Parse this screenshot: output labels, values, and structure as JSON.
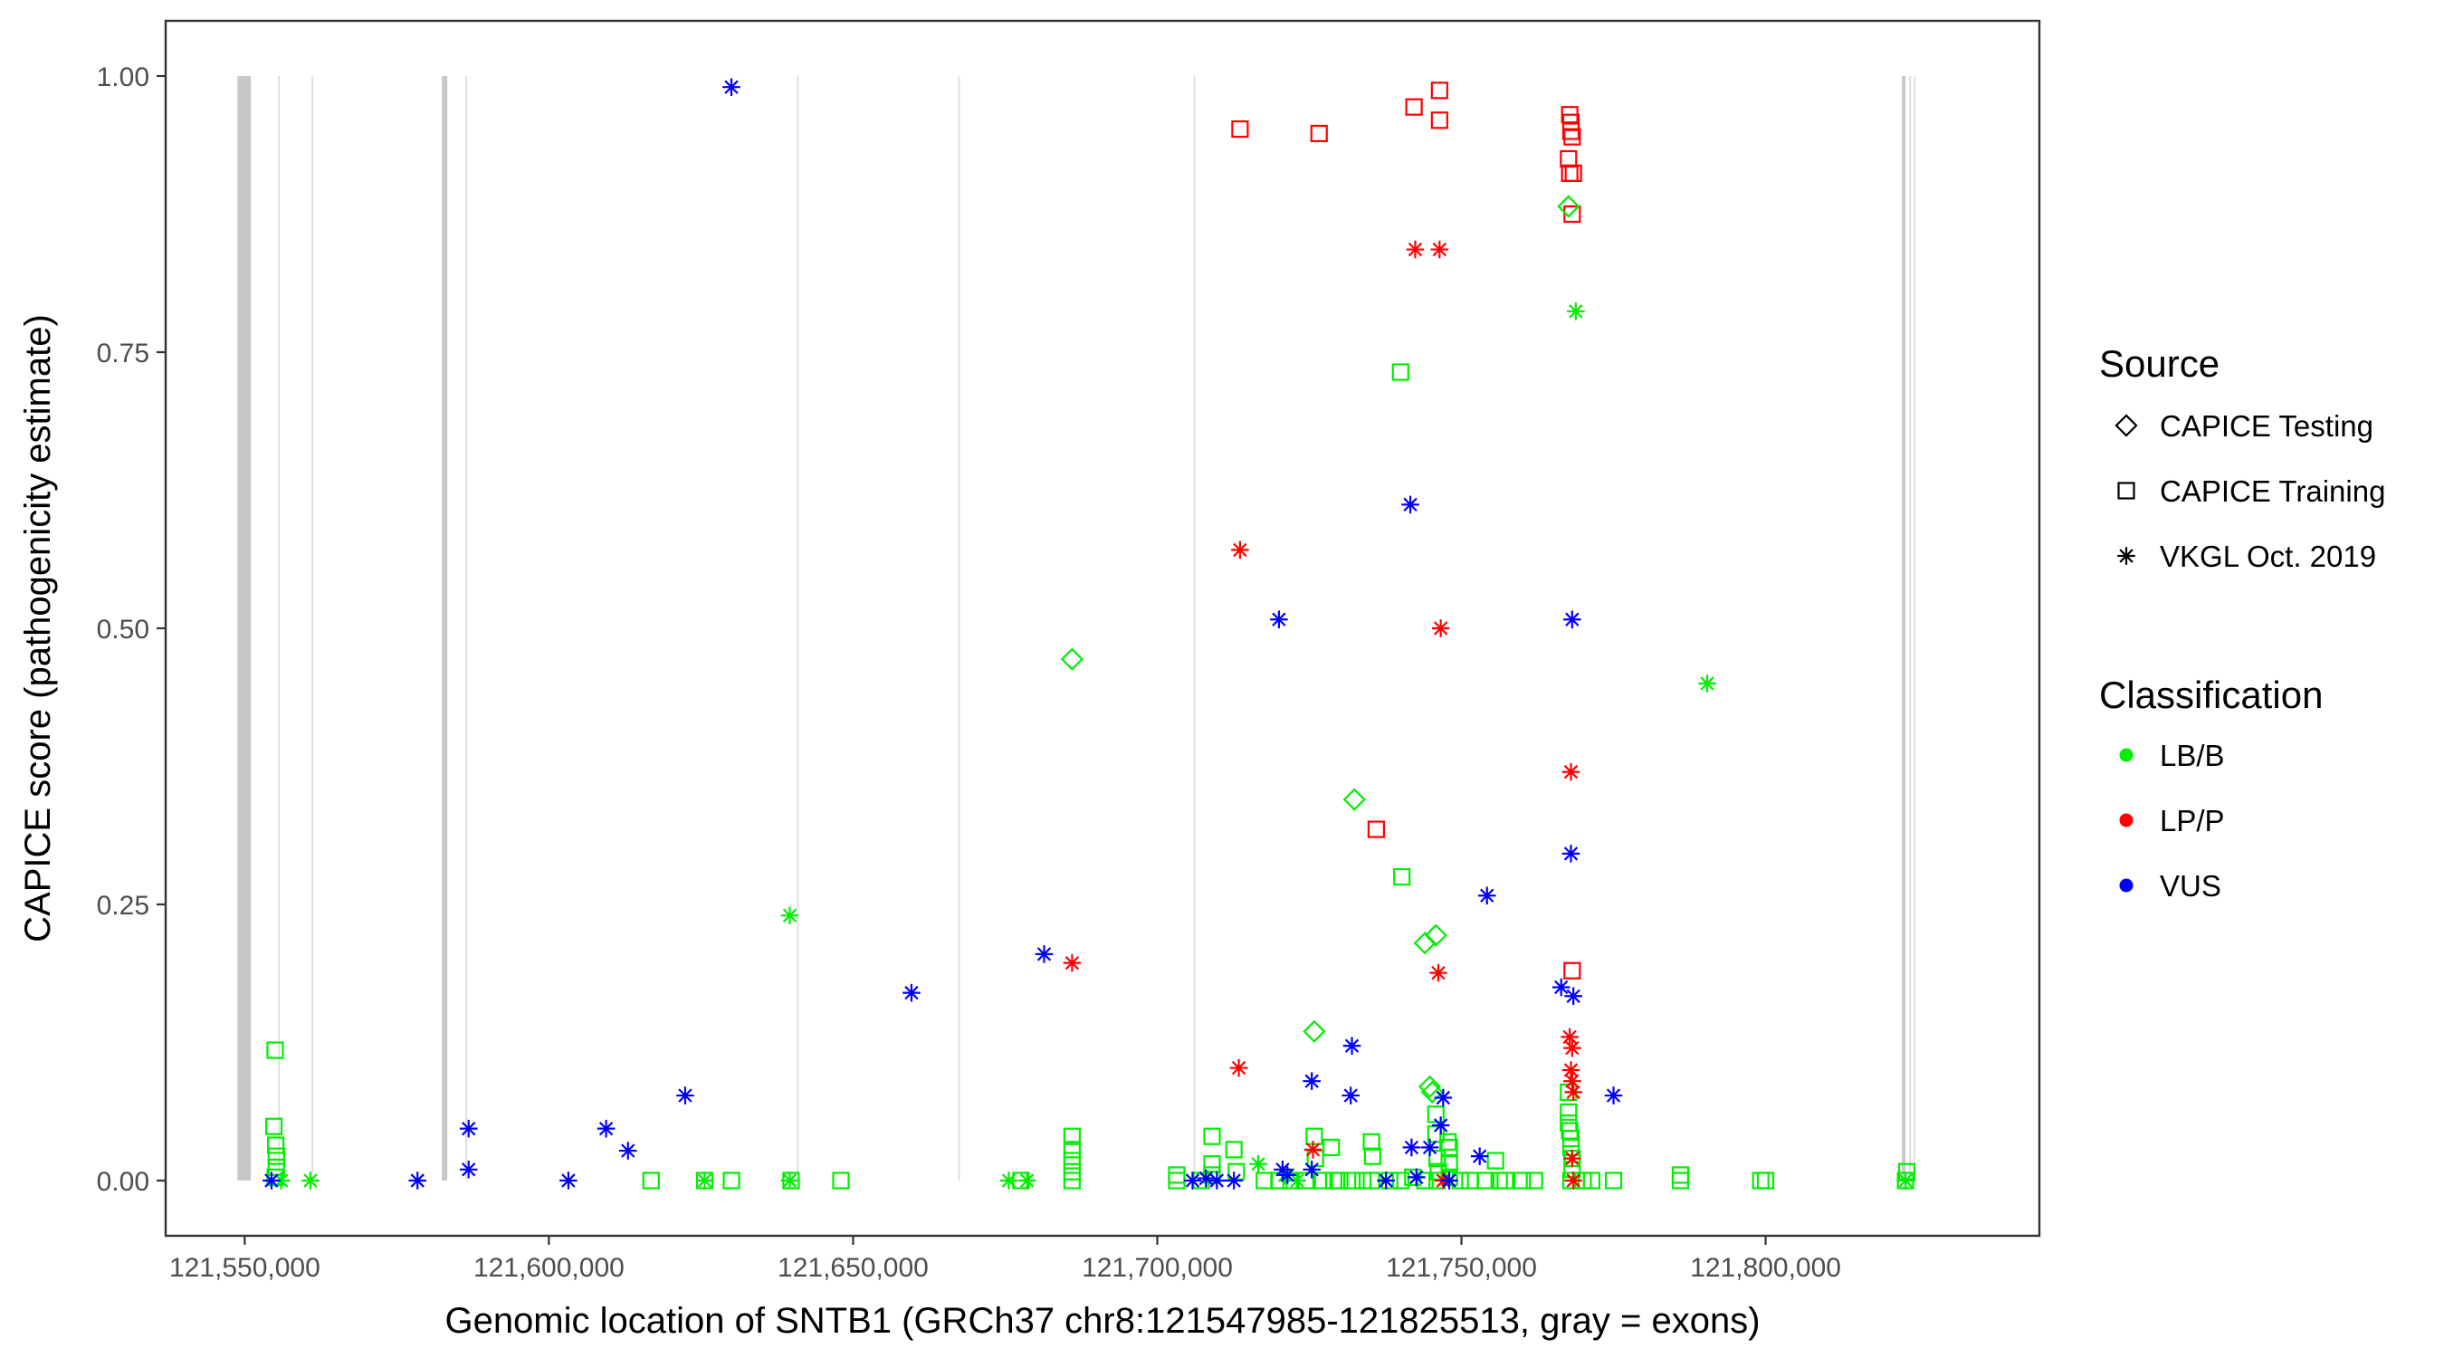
{
  "chart_data": {
    "type": "scatter",
    "xlabel": "Genomic location of SNTB1 (GRCh37 chr8:121547985-121825513, gray = exons)",
    "ylabel": "CAPICE score (pathogenicity estimate)",
    "xlim": [
      121537000,
      121845000
    ],
    "ylim": [
      -0.05,
      1.05
    ],
    "x_ticks": [
      121550000,
      121600000,
      121650000,
      121700000,
      121750000,
      121800000
    ],
    "x_tick_labels": [
      "121,550,000",
      "121,600,000",
      "121,650,000",
      "121,700,000",
      "121,750,000",
      "121,800,000"
    ],
    "y_ticks": [
      0,
      0.25,
      0.5,
      0.75,
      1.0
    ],
    "y_tick_labels": [
      "0.00",
      "0.25",
      "0.50",
      "0.75",
      "1.00"
    ],
    "grid": false,
    "exons": [
      {
        "start": 121548800,
        "end": 121551000
      },
      {
        "start": 121555500,
        "end": 121555700
      },
      {
        "start": 121561000,
        "end": 121561200
      },
      {
        "start": 121582400,
        "end": 121583300
      },
      {
        "start": 121586300,
        "end": 121586500
      },
      {
        "start": 121640800,
        "end": 121641000
      },
      {
        "start": 121667300,
        "end": 121667500
      },
      {
        "start": 121706000,
        "end": 121706200
      },
      {
        "start": 121822400,
        "end": 121823000
      },
      {
        "start": 121823600,
        "end": 121823900
      },
      {
        "start": 121824400,
        "end": 121824600
      }
    ],
    "legend": {
      "position": "right",
      "source_title": "Source",
      "source_entries": [
        {
          "label": "CAPICE Testing",
          "shape": "diamond"
        },
        {
          "label": "CAPICE Training",
          "shape": "square"
        },
        {
          "label": "VKGL Oct. 2019",
          "shape": "asterisk"
        }
      ],
      "class_title": "Classification",
      "class_entries": [
        {
          "label": "LB/B",
          "color": "#00ee00"
        },
        {
          "label": "LP/P",
          "color": "#ff0000"
        },
        {
          "label": "VUS",
          "color": "#0000ff"
        }
      ]
    },
    "colors": {
      "LB/B": "#00ee00",
      "LP/P": "#ff0000",
      "VUS": "#0000ff"
    },
    "series": [
      {
        "name": "CAPICE Training / LB/B",
        "shape": "square",
        "class": "LB/B",
        "points": [
          [
            121555000,
            0.118
          ],
          [
            121554800,
            0.049
          ],
          [
            121555100,
            0.032
          ],
          [
            121555200,
            0.022
          ],
          [
            121555200,
            0.012
          ],
          [
            121555000,
            0.003
          ],
          [
            121616800,
            0.0
          ],
          [
            121625600,
            0.0
          ],
          [
            121630000,
            0.0
          ],
          [
            121639800,
            0.0
          ],
          [
            121648000,
            0.0
          ],
          [
            121677600,
            0.0
          ],
          [
            121686000,
            0.04
          ],
          [
            121686000,
            0.028
          ],
          [
            121686000,
            0.018
          ],
          [
            121686000,
            0.008
          ],
          [
            121686000,
            0.0
          ],
          [
            121703200,
            0.005
          ],
          [
            121703200,
            0.0
          ],
          [
            121707200,
            0.0
          ],
          [
            121709000,
            0.04
          ],
          [
            121709000,
            0.015
          ],
          [
            121709000,
            0.005
          ],
          [
            121712600,
            0.028
          ],
          [
            121713000,
            0.008
          ],
          [
            121717600,
            0.0
          ],
          [
            121720000,
            0.0
          ],
          [
            121722000,
            0.0
          ],
          [
            121724400,
            0.0
          ],
          [
            121725800,
            0.04
          ],
          [
            121726000,
            0.02
          ],
          [
            121727200,
            0.0
          ],
          [
            121728600,
            0.03
          ],
          [
            121729000,
            0.0
          ],
          [
            121730000,
            0.0
          ],
          [
            121732000,
            0.0
          ],
          [
            121733800,
            0.0
          ],
          [
            121735200,
            0.035
          ],
          [
            121735400,
            0.022
          ],
          [
            121735200,
            0.0
          ],
          [
            121738200,
            0.0
          ],
          [
            121740000,
            0.0
          ],
          [
            121740000,
            0.732
          ],
          [
            121740200,
            0.275
          ],
          [
            121742000,
            0.003
          ],
          [
            121744000,
            0.0
          ],
          [
            121745800,
            0.06
          ],
          [
            121745800,
            0.042
          ],
          [
            121746000,
            0.02
          ],
          [
            121746200,
            0.008
          ],
          [
            121746000,
            0.0
          ],
          [
            121747800,
            0.035
          ],
          [
            121748000,
            0.03
          ],
          [
            121748000,
            0.015
          ],
          [
            121748000,
            0.003
          ],
          [
            121749800,
            0.0
          ],
          [
            121751400,
            0.0
          ],
          [
            121754000,
            0.0
          ],
          [
            121755600,
            0.018
          ],
          [
            121756200,
            0.0
          ],
          [
            121757200,
            0.0
          ],
          [
            121760000,
            0.0
          ],
          [
            121762000,
            0.0
          ],
          [
            121767600,
            0.08
          ],
          [
            121767600,
            0.062
          ],
          [
            121767600,
            0.052
          ],
          [
            121767800,
            0.045
          ],
          [
            121768000,
            0.038
          ],
          [
            121768000,
            0.03
          ],
          [
            121768200,
            0.02
          ],
          [
            121768200,
            0.01
          ],
          [
            121768000,
            0.0
          ],
          [
            121770000,
            0.0
          ],
          [
            121771400,
            0.0
          ],
          [
            121775000,
            0.0
          ],
          [
            121786000,
            0.0
          ],
          [
            121786000,
            0.005
          ],
          [
            121799200,
            0.0
          ],
          [
            121800000,
            0.0
          ],
          [
            121823000,
            0.0
          ],
          [
            121823200,
            0.008
          ]
        ]
      },
      {
        "name": "CAPICE Training / LP/P",
        "shape": "square",
        "class": "LP/P",
        "points": [
          [
            121713600,
            0.952
          ],
          [
            121726600,
            0.948
          ],
          [
            121736000,
            0.318
          ],
          [
            121742200,
            0.972
          ],
          [
            121746400,
            0.987
          ],
          [
            121746400,
            0.96
          ],
          [
            121767800,
            0.965
          ],
          [
            121768000,
            0.958
          ],
          [
            121768000,
            0.95
          ],
          [
            121768200,
            0.945
          ],
          [
            121767600,
            0.925
          ],
          [
            121767800,
            0.912
          ],
          [
            121768400,
            0.912
          ],
          [
            121768200,
            0.875
          ],
          [
            121768200,
            0.19
          ]
        ]
      },
      {
        "name": "CAPICE Testing / LB/B",
        "shape": "diamond",
        "class": "LB/B",
        "points": [
          [
            121686000,
            0.472
          ],
          [
            121732400,
            0.345
          ],
          [
            121744000,
            0.215
          ],
          [
            121745800,
            0.222
          ],
          [
            121725800,
            0.135
          ],
          [
            121744800,
            0.085
          ],
          [
            121745200,
            0.08
          ],
          [
            121767600,
            0.882
          ]
        ]
      },
      {
        "name": "VKGL Oct. 2019 / LB/B",
        "shape": "asterisk",
        "class": "LB/B",
        "points": [
          [
            121556000,
            0.0
          ],
          [
            121560800,
            0.0
          ],
          [
            121625600,
            0.0
          ],
          [
            121639600,
            0.24
          ],
          [
            121639600,
            0.0
          ],
          [
            121675600,
            0.0
          ],
          [
            121678600,
            0.0
          ],
          [
            121716600,
            0.015
          ],
          [
            121721000,
            0.005
          ],
          [
            121723000,
            0.0
          ],
          [
            121742600,
            0.003
          ],
          [
            121768800,
            0.787
          ],
          [
            121790400,
            0.45
          ],
          [
            121823000,
            0.0
          ]
        ]
      },
      {
        "name": "VKGL Oct. 2019 / LP/P",
        "shape": "asterisk",
        "class": "LP/P",
        "points": [
          [
            121713600,
            0.571
          ],
          [
            121713400,
            0.102
          ],
          [
            121725600,
            0.028
          ],
          [
            121686000,
            0.197
          ],
          [
            121742400,
            0.843
          ],
          [
            121746400,
            0.843
          ],
          [
            121746600,
            0.5
          ],
          [
            121746200,
            0.188
          ],
          [
            121747000,
            0.0
          ],
          [
            121768000,
            0.37
          ],
          [
            121767800,
            0.13
          ],
          [
            121768200,
            0.12
          ],
          [
            121768000,
            0.1
          ],
          [
            121768200,
            0.09
          ],
          [
            121768400,
            0.08
          ],
          [
            121768200,
            0.02
          ],
          [
            121768400,
            0.0
          ]
        ]
      },
      {
        "name": "VKGL Oct. 2019 / VUS",
        "shape": "asterisk",
        "class": "VUS",
        "points": [
          [
            121554400,
            0.0
          ],
          [
            121578400,
            0.0
          ],
          [
            121586800,
            0.047
          ],
          [
            121586800,
            0.01
          ],
          [
            121603200,
            0.0
          ],
          [
            121609400,
            0.047
          ],
          [
            121613000,
            0.027
          ],
          [
            121622400,
            0.077
          ],
          [
            121630000,
            0.99
          ],
          [
            121659600,
            0.17
          ],
          [
            121681400,
            0.205
          ],
          [
            121705800,
            0.0
          ],
          [
            121708000,
            0.002
          ],
          [
            121709800,
            0.0
          ],
          [
            121712600,
            0.0
          ],
          [
            121720000,
            0.508
          ],
          [
            121720600,
            0.01
          ],
          [
            121721400,
            0.005
          ],
          [
            121725400,
            0.09
          ],
          [
            121725400,
            0.01
          ],
          [
            121732000,
            0.122
          ],
          [
            121731800,
            0.077
          ],
          [
            121737600,
            0.0
          ],
          [
            121741600,
            0.612
          ],
          [
            121741800,
            0.03
          ],
          [
            121742600,
            0.003
          ],
          [
            121744800,
            0.03
          ],
          [
            121746600,
            0.05
          ],
          [
            121747000,
            0.075
          ],
          [
            121748000,
            0.0
          ],
          [
            121753000,
            0.022
          ],
          [
            121754200,
            0.258
          ],
          [
            121766400,
            0.175
          ],
          [
            121768200,
            0.508
          ],
          [
            121768000,
            0.296
          ],
          [
            121768400,
            0.167
          ],
          [
            121775000,
            0.077
          ]
        ]
      }
    ]
  }
}
